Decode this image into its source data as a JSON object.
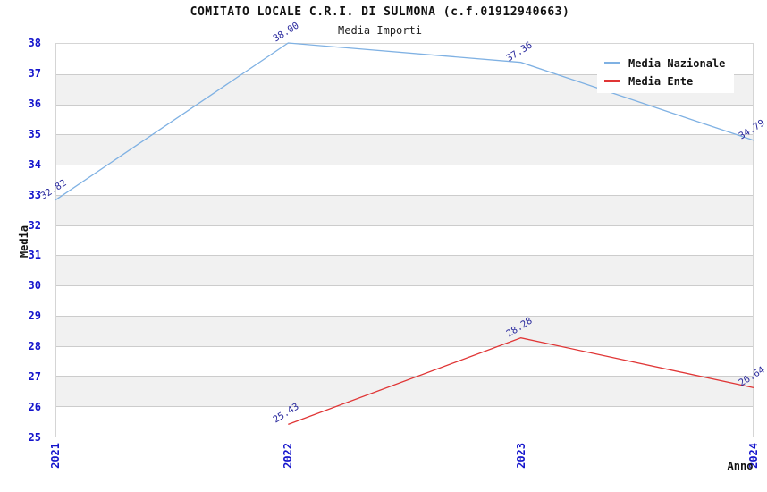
{
  "chart_data": {
    "type": "line",
    "title": "COMITATO LOCALE C.R.I. DI SULMONA (c.f.01912940663)",
    "subtitle": "Media Importi",
    "xlabel": "Anno",
    "ylabel": "Media",
    "categories": [
      "2021",
      "2022",
      "2023",
      "2024"
    ],
    "series": [
      {
        "name": "Media Nazionale",
        "color": "#7fb1e3",
        "values": [
          32.82,
          38.0,
          37.36,
          34.79
        ],
        "point_labels": [
          "32.82",
          "38.00",
          "37.36",
          "34.79"
        ]
      },
      {
        "name": "Media Ente",
        "color": "#e03535",
        "values": [
          null,
          25.43,
          28.28,
          26.64
        ],
        "point_labels": [
          null,
          "25.43",
          "28.28",
          "26.64"
        ]
      }
    ],
    "ylim": [
      25,
      38
    ],
    "yticks": [
      25,
      26,
      27,
      28,
      29,
      30,
      31,
      32,
      33,
      34,
      35,
      36,
      37,
      38
    ],
    "grid": true,
    "band_fill": true,
    "legend_position": "top-right",
    "colors": {
      "tick_label": "#1414cc",
      "point_label": "#2b2b9e",
      "band_gray": "#f1f1f1",
      "gridline": "#cccccc",
      "plot_border": "#d5d5d5",
      "text": "#111111"
    }
  }
}
